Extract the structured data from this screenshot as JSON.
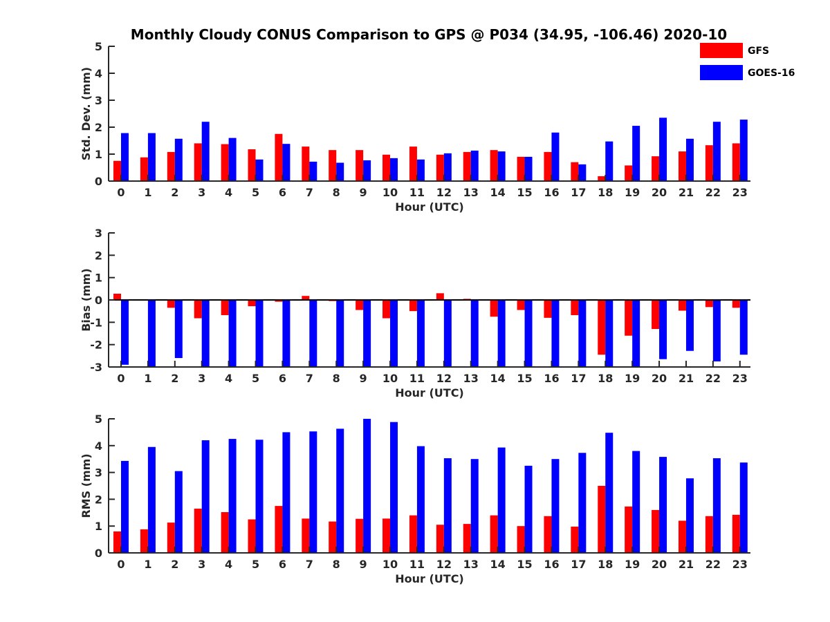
{
  "title": "Monthly Cloudy CONUS Comparison to GPS @ P034 (34.95, -106.46) 2020-10",
  "legend": {
    "placement": "top-right",
    "entries": [
      "GFS",
      "GOES-16"
    ]
  },
  "colors": {
    "GFS": "#ff0000",
    "GOES-16": "#0000ff",
    "axis": "#262626"
  },
  "chart_data": [
    {
      "type": "bar",
      "xlabel": "Hour (UTC)",
      "ylabel": "Std. Dev. (mm)",
      "ylim": [
        0,
        5
      ],
      "yticks": [
        "0",
        "1",
        "2",
        "3",
        "4",
        "5"
      ],
      "categories": [
        "0",
        "1",
        "2",
        "3",
        "4",
        "5",
        "6",
        "7",
        "8",
        "9",
        "10",
        "11",
        "12",
        "13",
        "14",
        "15",
        "16",
        "17",
        "18",
        "19",
        "20",
        "21",
        "22",
        "23"
      ],
      "series": [
        {
          "name": "GFS",
          "values": [
            0.75,
            0.88,
            1.08,
            1.4,
            1.37,
            1.18,
            1.75,
            1.28,
            1.15,
            1.15,
            0.98,
            1.28,
            0.98,
            1.08,
            1.15,
            0.9,
            1.08,
            0.7,
            0.18,
            0.58,
            0.92,
            1.1,
            1.33,
            1.4
          ]
        },
        {
          "name": "GOES-16",
          "values": [
            1.78,
            1.78,
            1.57,
            2.2,
            1.6,
            0.8,
            1.38,
            0.72,
            0.68,
            0.77,
            0.85,
            0.8,
            1.03,
            1.13,
            1.1,
            0.9,
            1.8,
            0.62,
            1.47,
            2.05,
            2.35,
            1.57,
            2.2,
            2.28
          ]
        }
      ],
      "grid": false
    },
    {
      "type": "bar",
      "xlabel": "Hour (UTC)",
      "ylabel": "Bias (mm)",
      "ylim": [
        -3,
        3
      ],
      "yticks": [
        "-3",
        "-2",
        "-1",
        "0",
        "1",
        "2",
        "3"
      ],
      "categories": [
        "0",
        "1",
        "2",
        "3",
        "4",
        "5",
        "6",
        "7",
        "8",
        "9",
        "10",
        "11",
        "12",
        "13",
        "14",
        "15",
        "16",
        "17",
        "18",
        "19",
        "20",
        "21",
        "22",
        "23"
      ],
      "series": [
        {
          "name": "GFS",
          "values": [
            0.28,
            0.0,
            -0.35,
            -0.82,
            -0.68,
            -0.28,
            -0.08,
            0.18,
            -0.05,
            -0.45,
            -0.82,
            -0.5,
            0.3,
            0.05,
            -0.75,
            -0.45,
            -0.8,
            -0.68,
            -2.45,
            -1.6,
            -1.3,
            -0.48,
            -0.32,
            -0.35
          ]
        },
        {
          "name": "GOES-16",
          "values": [
            -2.9,
            -3.05,
            -2.6,
            -3.05,
            -3.05,
            -3.05,
            -3.05,
            -3.05,
            -3.05,
            -3.05,
            -3.05,
            -3.05,
            -3.05,
            -3.05,
            -3.05,
            -3.05,
            -3.05,
            -3.05,
            -3.05,
            -3.05,
            -2.65,
            -2.28,
            -2.75,
            -2.45
          ]
        }
      ],
      "grid": false
    },
    {
      "type": "bar",
      "xlabel": "Hour (UTC)",
      "ylabel": "RMS (mm)",
      "ylim": [
        0,
        5
      ],
      "yticks": [
        "0",
        "1",
        "2",
        "3",
        "4",
        "5"
      ],
      "categories": [
        "0",
        "1",
        "2",
        "3",
        "4",
        "5",
        "6",
        "7",
        "8",
        "9",
        "10",
        "11",
        "12",
        "13",
        "14",
        "15",
        "16",
        "17",
        "18",
        "19",
        "20",
        "21",
        "22",
        "23"
      ],
      "series": [
        {
          "name": "GFS",
          "values": [
            0.8,
            0.88,
            1.13,
            1.65,
            1.52,
            1.25,
            1.75,
            1.28,
            1.17,
            1.27,
            1.28,
            1.4,
            1.05,
            1.08,
            1.4,
            1.0,
            1.37,
            0.98,
            2.5,
            1.73,
            1.6,
            1.2,
            1.37,
            1.42
          ]
        },
        {
          "name": "GOES-16",
          "values": [
            3.43,
            3.95,
            3.05,
            4.2,
            4.25,
            4.22,
            4.5,
            4.53,
            4.63,
            5.0,
            4.88,
            3.98,
            3.53,
            3.5,
            3.93,
            3.25,
            3.5,
            3.73,
            4.48,
            3.8,
            3.58,
            2.78,
            3.53,
            3.37
          ]
        }
      ],
      "grid": false
    }
  ]
}
